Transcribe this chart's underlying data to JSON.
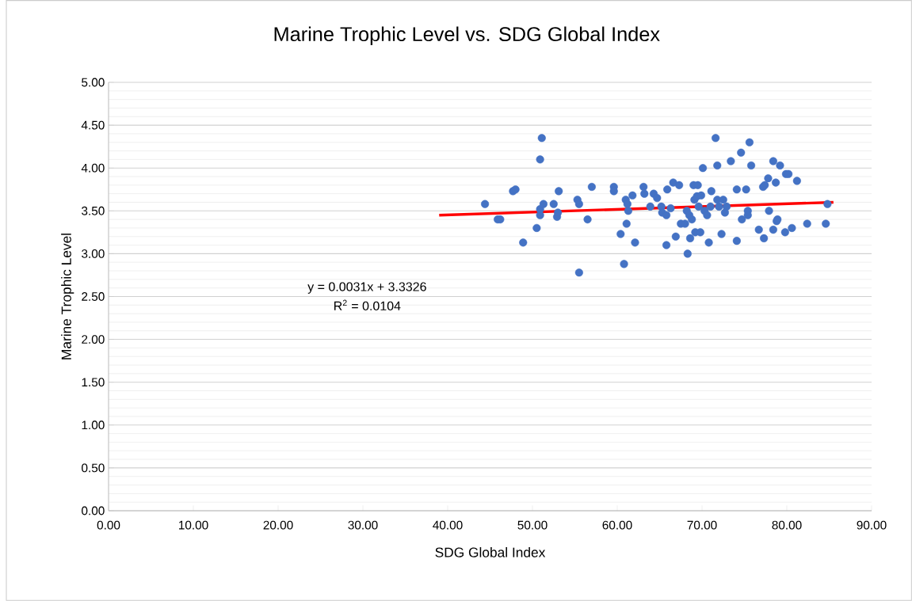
{
  "chart_data": {
    "type": "scatter",
    "title": "Marine Trophic Level vs. SDG Global Index",
    "xlabel": "SDG Global Index",
    "ylabel": "Marine Trophic Level",
    "xlim": [
      0,
      90
    ],
    "ylim": [
      0,
      5
    ],
    "xticks": [
      {
        "value": 0,
        "label": "0.00"
      },
      {
        "value": 10,
        "label": "10.00"
      },
      {
        "value": 20,
        "label": "20.00"
      },
      {
        "value": 30,
        "label": "30.00"
      },
      {
        "value": 40,
        "label": "40.00"
      },
      {
        "value": 50,
        "label": "50.00"
      },
      {
        "value": 60,
        "label": "60.00"
      },
      {
        "value": 70,
        "label": "70.00"
      },
      {
        "value": 80,
        "label": "80.00"
      },
      {
        "value": 90,
        "label": "90.00"
      }
    ],
    "yticks": [
      {
        "value": 0,
        "label": "0.00"
      },
      {
        "value": 0.5,
        "label": "0.50"
      },
      {
        "value": 1,
        "label": "1.00"
      },
      {
        "value": 1.5,
        "label": "1.50"
      },
      {
        "value": 2,
        "label": "2.00"
      },
      {
        "value": 2.5,
        "label": "2.50"
      },
      {
        "value": 3,
        "label": "3.00"
      },
      {
        "value": 3.5,
        "label": "3.50"
      },
      {
        "value": 4,
        "label": "4.00"
      },
      {
        "value": 4.5,
        "label": "4.50"
      },
      {
        "value": 5,
        "label": "5.00"
      }
    ],
    "grid": "y",
    "annotations": [
      "y = 0.0031x + 3.3326",
      "R$^{2}$ = 0.0104"
    ],
    "series": [
      {
        "color": "#4472c4",
        "marker": "circle",
        "x": [
          44.4,
          45.9,
          46.2,
          47.7,
          48.0,
          48.9,
          50.5,
          50.9,
          51.1,
          50.9,
          50.9,
          51.3,
          52.5,
          52.9,
          53.1,
          53.0,
          55.3,
          55.5,
          55.5,
          56.5,
          57.0,
          59.6,
          59.6,
          60.4,
          60.8,
          61.0,
          61.1,
          61.3,
          61.2,
          61.8,
          62.1,
          63.1,
          63.2,
          63.9,
          64.3,
          64.7,
          65.2,
          65.3,
          65.8,
          65.9,
          65.8,
          66.3,
          66.6,
          66.9,
          67.3,
          67.5,
          68.0,
          68.2,
          68.3,
          68.5,
          68.6,
          68.8,
          69.0,
          69.1,
          69.2,
          69.4,
          69.5,
          69.6,
          69.8,
          69.9,
          70.1,
          70.3,
          70.6,
          70.8,
          71.0,
          71.1,
          71.6,
          71.8,
          71.8,
          72.0,
          72.3,
          72.5,
          72.7,
          72.9,
          73.4,
          74.1,
          74.1,
          74.6,
          74.7,
          75.2,
          75.4,
          75.4,
          75.6,
          75.8,
          76.7,
          77.2,
          77.3,
          77.4,
          77.8,
          77.9,
          78.4,
          78.4,
          78.7,
          78.8,
          78.9,
          79.2,
          79.8,
          79.9,
          80.2,
          80.6,
          81.2,
          82.4,
          84.6,
          84.8
        ],
        "values": [
          3.58,
          3.4,
          3.4,
          3.73,
          3.75,
          3.13,
          3.3,
          4.1,
          4.35,
          3.45,
          3.52,
          3.58,
          3.58,
          3.43,
          3.73,
          3.48,
          3.63,
          3.58,
          2.78,
          3.4,
          3.78,
          3.78,
          3.73,
          3.23,
          2.88,
          3.63,
          3.35,
          3.5,
          3.58,
          3.68,
          3.13,
          3.78,
          3.7,
          3.55,
          3.7,
          3.65,
          3.55,
          3.48,
          3.1,
          3.75,
          3.45,
          3.53,
          3.83,
          3.2,
          3.8,
          3.35,
          3.35,
          3.5,
          3.0,
          3.45,
          3.18,
          3.4,
          3.8,
          3.63,
          3.25,
          3.67,
          3.8,
          3.55,
          3.25,
          3.68,
          4.0,
          3.5,
          3.45,
          3.13,
          3.55,
          3.73,
          4.35,
          4.03,
          3.63,
          3.55,
          3.23,
          3.63,
          3.48,
          3.55,
          4.08,
          3.75,
          3.15,
          4.18,
          3.4,
          3.75,
          3.5,
          3.45,
          4.3,
          4.03,
          3.28,
          3.78,
          3.18,
          3.8,
          3.88,
          3.5,
          4.08,
          3.28,
          3.83,
          3.38,
          3.4,
          4.03,
          3.25,
          3.93,
          3.93,
          3.3,
          3.85,
          3.35,
          3.35,
          3.58
        ]
      },
      {
        "type": "line",
        "color": "#ff0000",
        "marker": "none",
        "line_style": "solid",
        "x": [
          39,
          85.5
        ],
        "values": [
          3.45,
          3.6
        ]
      }
    ]
  }
}
